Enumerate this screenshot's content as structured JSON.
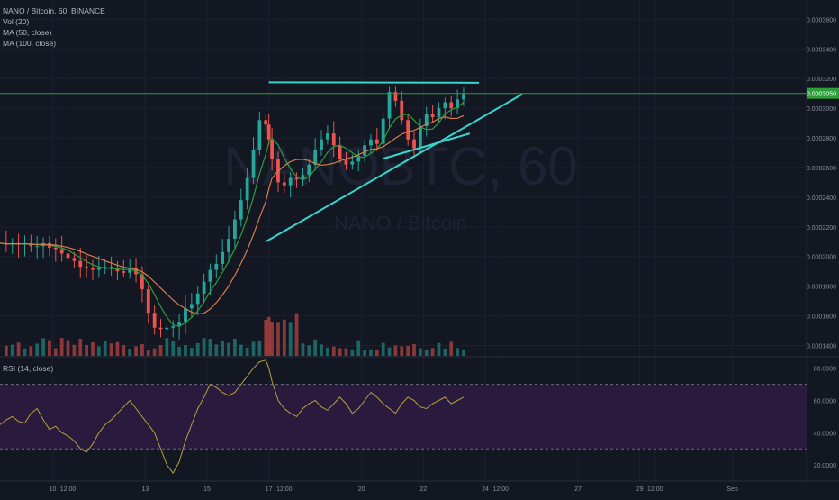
{
  "legend": {
    "symbol": "NANO / Bitcoin, 60, BINANCE",
    "vol": "Vol (20)",
    "ma50": "MA (50, close)",
    "ma100": "MA (100, close)"
  },
  "rsi_legend": "RSI (14, close)",
  "watermark": {
    "ticker": "NANOBTC, 60",
    "name": "NANO / Bitcoin"
  },
  "price_label": "0.0003050",
  "colors": {
    "background": "#131722",
    "up": "#26a69a",
    "down": "#ef5350",
    "trendline": "#37d6cf",
    "ma50": "#2e9e3a",
    "ma100": "#d87d4a",
    "rsi_line": "#b5a23a",
    "rsi_band": "#2a1a3d",
    "price_line": "#2e9e3a",
    "axis_text": "#8c8f9a"
  },
  "chart_data": {
    "type": "candlestick",
    "title": "NANO / Bitcoin, 60, BINANCE",
    "price_axis": {
      "ticks": [
        0.00014,
        0.00016,
        0.00018,
        0.0002,
        0.00022,
        0.00024,
        0.00026,
        0.00028,
        0.0003,
        0.00032,
        0.00034,
        0.00036
      ],
      "tick_labels": [
        "0.0001400",
        "0.0001600",
        "0.0001800",
        "0.0002000",
        "0.0002200",
        "0.0002400",
        "0.0002600",
        "0.0002800",
        "0.0003000",
        "0.0003200",
        "0.0003400",
        "0.0003600"
      ],
      "ylim": [
        0.000133,
        0.000373
      ]
    },
    "time_axis": {
      "ticks": [
        10,
        10.5,
        13,
        15,
        17,
        17.5,
        20,
        22,
        24,
        24.5,
        27,
        29,
        29.5,
        32
      ],
      "tick_labels": [
        "10",
        "12:00",
        "13",
        "15",
        "17",
        "12:00",
        "20",
        "22",
        "24",
        "12:00",
        "27",
        "29",
        "12:00",
        "Sep"
      ],
      "xlim": [
        8.3,
        34.4
      ]
    },
    "price_series": {
      "x": [
        8.3,
        8.5,
        8.7,
        8.9,
        9.1,
        9.3,
        9.5,
        9.7,
        9.9,
        10.1,
        10.3,
        10.5,
        10.7,
        10.9,
        11.1,
        11.3,
        11.5,
        11.7,
        11.9,
        12.1,
        12.3,
        12.5,
        12.7,
        12.9,
        13.1,
        13.3,
        13.5,
        13.7,
        13.9,
        14.1,
        14.3,
        14.5,
        14.7,
        14.9,
        15.1,
        15.3,
        15.5,
        15.7,
        15.9,
        16.1,
        16.3,
        16.5,
        16.7,
        16.9,
        17.0,
        17.1,
        17.3,
        17.5,
        17.7,
        17.9,
        18.1,
        18.3,
        18.5,
        18.7,
        18.9,
        19.1,
        19.3,
        19.5,
        19.7,
        19.9,
        20.1,
        20.3,
        20.5,
        20.7,
        20.9,
        21.1,
        21.3,
        21.5,
        21.7,
        21.9,
        22.1,
        22.3,
        22.5,
        22.7,
        22.9,
        23.1,
        23.3
      ],
      "close": [
        0.000209,
        0.000208,
        0.000209,
        0.000208,
        0.000209,
        0.000207,
        0.000207,
        0.000209,
        0.000206,
        0.000205,
        0.000202,
        0.000199,
        0.000197,
        0.000193,
        0.000192,
        0.000191,
        0.000192,
        0.000193,
        0.000192,
        0.00019,
        0.000189,
        0.000192,
        0.000188,
        0.000178,
        0.000162,
        0.000152,
        0.000151,
        0.000152,
        0.000153,
        0.000156,
        0.000165,
        0.000168,
        0.000175,
        0.000183,
        0.000191,
        0.000195,
        0.000203,
        0.000212,
        0.000225,
        0.000238,
        0.000253,
        0.000272,
        0.000292,
        0.000289,
        0.000279,
        0.000266,
        0.00025,
        0.000248,
        0.000253,
        0.000252,
        0.000255,
        0.000262,
        0.000272,
        0.000279,
        0.000283,
        0.000275,
        0.000266,
        0.000262,
        0.000264,
        0.000268,
        0.000275,
        0.000279,
        0.000276,
        0.000293,
        0.000311,
        0.000305,
        0.000292,
        0.000279,
        0.000273,
        0.000288,
        0.000296,
        0.000294,
        0.0003,
        0.000304,
        0.0003,
        0.000306,
        0.00031
      ]
    },
    "trendlines": [
      {
        "x": [
          17.0,
          23.8
        ],
        "y": [
          0.0003175,
          0.0003172
        ]
      },
      {
        "x": [
          16.9,
          25.2
        ],
        "y": [
          0.00021,
          0.0003095
        ]
      },
      {
        "x": [
          20.7,
          23.5
        ],
        "y": [
          0.000266,
          0.000283
        ]
      }
    ],
    "rsi": {
      "ticks": [
        20,
        40,
        60,
        80
      ],
      "tick_labels": [
        "20.0000",
        "40.0000",
        "60.0000",
        "80.0000"
      ],
      "ylim": [
        10,
        86
      ],
      "upper_band": 70,
      "lower_band": 30,
      "x": [
        8.3,
        8.5,
        8.7,
        8.9,
        9.1,
        9.3,
        9.5,
        9.7,
        9.9,
        10.1,
        10.3,
        10.5,
        10.7,
        10.9,
        11.1,
        11.3,
        11.5,
        11.7,
        11.9,
        12.1,
        12.3,
        12.5,
        12.7,
        12.9,
        13.1,
        13.3,
        13.5,
        13.7,
        13.9,
        14.1,
        14.3,
        14.5,
        14.7,
        14.9,
        15.1,
        15.3,
        15.5,
        15.7,
        15.9,
        16.1,
        16.3,
        16.5,
        16.7,
        16.9,
        17.0,
        17.1,
        17.3,
        17.5,
        17.7,
        17.9,
        18.1,
        18.3,
        18.5,
        18.7,
        18.9,
        19.1,
        19.3,
        19.5,
        19.7,
        19.9,
        20.1,
        20.3,
        20.5,
        20.7,
        20.9,
        21.1,
        21.3,
        21.5,
        21.7,
        21.9,
        22.1,
        22.3,
        22.5,
        22.7,
        22.9,
        23.1,
        23.3
      ],
      "values": [
        45,
        48,
        50,
        47,
        46,
        52,
        55,
        48,
        42,
        44,
        40,
        38,
        35,
        30,
        28,
        33,
        40,
        45,
        48,
        52,
        56,
        60,
        55,
        50,
        45,
        40,
        30,
        20,
        15,
        22,
        35,
        45,
        55,
        62,
        70,
        68,
        65,
        63,
        65,
        70,
        75,
        80,
        84,
        85,
        80,
        72,
        60,
        55,
        52,
        50,
        55,
        58,
        60,
        56,
        54,
        58,
        62,
        58,
        52,
        55,
        60,
        65,
        62,
        58,
        55,
        52,
        58,
        62,
        60,
        56,
        55,
        58,
        60,
        62,
        58,
        60,
        62
      ]
    }
  }
}
